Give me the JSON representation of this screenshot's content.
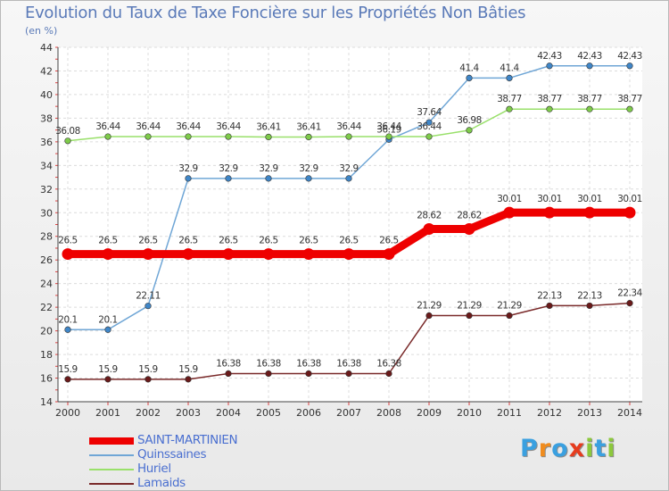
{
  "title": "Evolution du Taux de Taxe Foncière sur les Propriétés Non Bâties",
  "unit": "(en %)",
  "logo": {
    "letters": [
      "P",
      "r",
      "o",
      "x",
      "i",
      "t",
      "i"
    ],
    "colors": [
      "#3aa0e0",
      "#f08c1e",
      "#3aa0e0",
      "#e63c1e",
      "#8cc83c",
      "#3aa0e0",
      "#8cc83c"
    ]
  },
  "chart_data": {
    "type": "line",
    "title": "Evolution du Taux de Taxe Foncière sur les Propriétés Non Bâties",
    "ylabel": "(en %)",
    "xlabel": "",
    "ylim": [
      14,
      44
    ],
    "yticks": [
      14,
      16,
      18,
      20,
      22,
      24,
      26,
      28,
      30,
      32,
      34,
      36,
      38,
      40,
      42,
      44
    ],
    "categories": [
      "2000",
      "2001",
      "2002",
      "2003",
      "2004",
      "2005",
      "2006",
      "2007",
      "2008",
      "2009",
      "2010",
      "2011",
      "2012",
      "2013",
      "2014"
    ],
    "grid": true,
    "legend_position": "bottom-left",
    "series": [
      {
        "name": "SAINT-MARTINIEN",
        "color": "#ee0000",
        "marker_color": "#ee0000",
        "values": [
          26.5,
          26.5,
          26.5,
          26.5,
          26.5,
          26.5,
          26.5,
          26.5,
          26.5,
          28.62,
          28.62,
          30.01,
          30.01,
          30.01,
          30.01
        ],
        "labels": [
          "26.5",
          "26.5",
          "26.5",
          "26.5",
          "26.5",
          "26.5",
          "26.5",
          "26.5",
          "26.5",
          "28.62",
          "28.62",
          "30.01",
          "30.01",
          "30.01",
          "30.01"
        ],
        "emphasis": true
      },
      {
        "name": "Quinssaines",
        "color": "#6fa6d6",
        "marker_color": "#3f86c8",
        "values": [
          20.1,
          20.1,
          22.11,
          32.9,
          32.9,
          32.9,
          32.9,
          32.9,
          36.19,
          37.64,
          41.4,
          41.4,
          42.43,
          42.43,
          42.43
        ],
        "labels": [
          "20.1",
          "20.1",
          "22.11",
          "32.9",
          "32.9",
          "32.9",
          "32.9",
          "32.9",
          "36.19",
          "37.64",
          "41.4",
          "41.4",
          "42.43",
          "42.43",
          "42.43"
        ],
        "emphasis": false
      },
      {
        "name": "Huriel",
        "color": "#99e06a",
        "marker_color": "#7ecb4a",
        "values": [
          36.08,
          36.44,
          36.44,
          36.44,
          36.44,
          36.41,
          36.41,
          36.44,
          36.44,
          36.44,
          36.98,
          38.77,
          38.77,
          38.77,
          38.77
        ],
        "labels": [
          "36.08",
          "36.44",
          "36.44",
          "36.44",
          "36.44",
          "36.41",
          "36.41",
          "36.44",
          "36.44",
          "36.44",
          "36.98",
          "38.77",
          "38.77",
          "38.77",
          "38.77"
        ],
        "emphasis": false
      },
      {
        "name": "Lamaids",
        "color": "#7a2a2a",
        "marker_color": "#6a1a1a",
        "values": [
          15.9,
          15.9,
          15.9,
          15.9,
          16.38,
          16.38,
          16.38,
          16.38,
          16.38,
          21.29,
          21.29,
          21.29,
          22.13,
          22.13,
          22.34
        ],
        "labels": [
          "15.9",
          "15.9",
          "15.9",
          "15.9",
          "16.38",
          "16.38",
          "16.38",
          "16.38",
          "16.38",
          "21.29",
          "21.29",
          "21.29",
          "22.13",
          "22.13",
          "22.34"
        ],
        "emphasis": false
      }
    ]
  }
}
